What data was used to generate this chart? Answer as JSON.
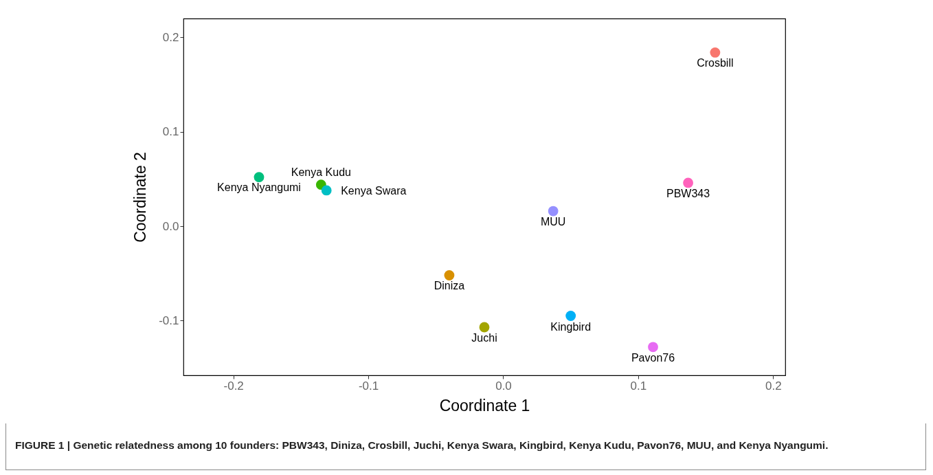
{
  "chart_data": {
    "type": "scatter",
    "xlabel": "Coordinate 1",
    "ylabel": "Coordinate 2",
    "xlim": [
      -0.237,
      0.209
    ],
    "ylim": [
      -0.158,
      0.22
    ],
    "xticks": [
      -0.2,
      -0.1,
      {
        "value": 0,
        "label": "0.0"
      },
      0.1,
      0.2
    ],
    "yticks": [
      -0.1,
      {
        "value": 0,
        "label": "0.0"
      },
      0.1,
      0.2
    ],
    "grid": false,
    "legend": false,
    "marker": "circle",
    "series": [
      {
        "name": "Crosbill",
        "color": "#f8766d",
        "x": [
          0.157
        ],
        "values": [
          0.184
        ]
      },
      {
        "name": "Diniza",
        "color": "#d89000",
        "x": [
          -0.04
        ],
        "values": [
          -0.052
        ]
      },
      {
        "name": "Juchi",
        "color": "#a3a500",
        "x": [
          -0.014
        ],
        "values": [
          -0.107
        ]
      },
      {
        "name": "Kenya Kudu",
        "color": "#39b600",
        "x": [
          -0.135
        ],
        "values": [
          0.044
        ]
      },
      {
        "name": "Kenya Nyangumi",
        "color": "#00bf7d",
        "x": [
          -0.181
        ],
        "values": [
          0.052
        ]
      },
      {
        "name": "Kenya Swara",
        "color": "#00bfc4",
        "x": [
          -0.131
        ],
        "values": [
          0.038
        ]
      },
      {
        "name": "Kingbird",
        "color": "#00b0f6",
        "x": [
          0.05
        ],
        "values": [
          -0.095
        ]
      },
      {
        "name": "MUU",
        "color": "#9590ff",
        "x": [
          0.037
        ],
        "values": [
          0.016
        ]
      },
      {
        "name": "Pavon76",
        "color": "#e76bf3",
        "x": [
          0.111
        ],
        "values": [
          -0.128
        ]
      },
      {
        "name": "PBW343",
        "color": "#ff62bc",
        "x": [
          0.137
        ],
        "values": [
          0.046
        ]
      }
    ],
    "annotations": [
      "FIGURE 1 | Genetic relatedness among 10 founders: PBW343, Diniza, Crosbill, Juchi, Kenya Swara, Kingbird, Kenya Kudu, Pavon76, MUU, and Kenya Nyangumi."
    ]
  }
}
